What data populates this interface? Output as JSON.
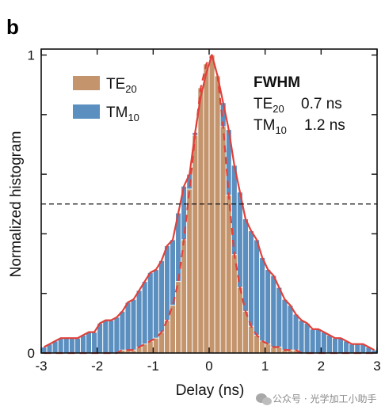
{
  "figure": {
    "panel_label": "b",
    "watermark": "公众号 · 光学加工小助手"
  },
  "colors": {
    "te": "#c4956d",
    "tm": "#5b8fc0",
    "bar_edge": "#ffffff",
    "fit": "#e0413a",
    "half_max_line": "#111111"
  },
  "chart_data": {
    "type": "bar",
    "xlabel": "Delay (ns)",
    "ylabel": "Normalized histogram",
    "xlim": [
      -3,
      3
    ],
    "ylim": [
      0,
      1.02
    ],
    "xticks": [
      "-3",
      "-2",
      "-1",
      "0",
      "1",
      "2",
      "3"
    ],
    "yticks": [
      "0",
      "1"
    ],
    "half_max": 0.5,
    "bin_width": 0.1,
    "x": [
      -2.95,
      -2.85,
      -2.75,
      -2.65,
      -2.55,
      -2.45,
      -2.35,
      -2.25,
      -2.15,
      -2.05,
      -1.95,
      -1.85,
      -1.75,
      -1.65,
      -1.55,
      -1.45,
      -1.35,
      -1.25,
      -1.15,
      -1.05,
      -0.95,
      -0.85,
      -0.75,
      -0.65,
      -0.55,
      -0.45,
      -0.35,
      -0.25,
      -0.15,
      -0.05,
      0.05,
      0.15,
      0.25,
      0.35,
      0.45,
      0.55,
      0.65,
      0.75,
      0.85,
      0.95,
      1.05,
      1.15,
      1.25,
      1.35,
      1.45,
      1.55,
      1.65,
      1.75,
      1.85,
      1.95,
      2.05,
      2.15,
      2.25,
      2.35,
      2.45,
      2.55,
      2.65,
      2.75,
      2.85,
      2.95
    ],
    "series": [
      {
        "name": "TM",
        "name_sub": "10",
        "values": [
          0.02,
          0.03,
          0.04,
          0.05,
          0.05,
          0.05,
          0.05,
          0.06,
          0.07,
          0.07,
          0.1,
          0.11,
          0.11,
          0.12,
          0.14,
          0.17,
          0.18,
          0.21,
          0.24,
          0.27,
          0.28,
          0.31,
          0.36,
          0.38,
          0.47,
          0.56,
          0.6,
          0.74,
          0.86,
          0.94,
          1.0,
          0.93,
          0.84,
          0.75,
          0.63,
          0.54,
          0.45,
          0.41,
          0.38,
          0.32,
          0.28,
          0.26,
          0.22,
          0.18,
          0.16,
          0.13,
          0.11,
          0.1,
          0.08,
          0.08,
          0.07,
          0.06,
          0.05,
          0.05,
          0.04,
          0.03,
          0.03,
          0.03,
          0.02,
          0.01
        ]
      },
      {
        "name": "TE",
        "name_sub": "20",
        "values": [
          0,
          0,
          0,
          0,
          0,
          0,
          0,
          0,
          0,
          0,
          0,
          0,
          0,
          0,
          0.01,
          0.01,
          0.01,
          0.02,
          0.03,
          0.04,
          0.05,
          0.07,
          0.11,
          0.16,
          0.24,
          0.38,
          0.55,
          0.73,
          0.89,
          0.97,
          1.0,
          0.93,
          0.76,
          0.53,
          0.33,
          0.22,
          0.14,
          0.09,
          0.06,
          0.04,
          0.03,
          0.02,
          0.02,
          0.01,
          0.01,
          0.01,
          0,
          0,
          0,
          0,
          0,
          0,
          0,
          0,
          0,
          0,
          0,
          0,
          0,
          0
        ]
      }
    ],
    "legend": [
      "TE20",
      "TM10"
    ],
    "legend_position": "top-left",
    "annotations": {
      "title": "FWHM",
      "rows": [
        {
          "name": "TE",
          "sub": "20",
          "value": "0.7 ns"
        },
        {
          "name": "TM",
          "sub": "10",
          "value": "1.2 ns"
        }
      ]
    }
  }
}
